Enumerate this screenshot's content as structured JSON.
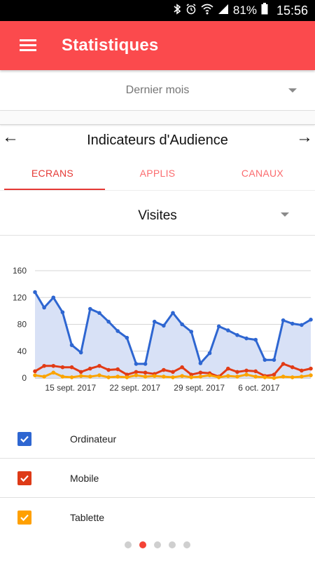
{
  "status_bar": {
    "battery": "81%",
    "time": "15:56"
  },
  "app_bar": {
    "title": "Statistiques"
  },
  "period": {
    "selected": "Dernier mois"
  },
  "section": {
    "title": "Indicateurs d'Audience"
  },
  "tabs": [
    {
      "label": "ECRANS",
      "active": true
    },
    {
      "label": "APPLIS",
      "active": false
    },
    {
      "label": "CANAUX",
      "active": false
    }
  ],
  "metric": {
    "selected": "Visites"
  },
  "chart_data": {
    "type": "line",
    "x": [
      "2017-09-12",
      "2017-09-13",
      "2017-09-14",
      "2017-09-15",
      "2017-09-16",
      "2017-09-17",
      "2017-09-18",
      "2017-09-19",
      "2017-09-20",
      "2017-09-21",
      "2017-09-22",
      "2017-09-23",
      "2017-09-24",
      "2017-09-25",
      "2017-09-26",
      "2017-09-27",
      "2017-09-28",
      "2017-09-29",
      "2017-09-30",
      "2017-10-01",
      "2017-10-02",
      "2017-10-03",
      "2017-10-04",
      "2017-10-05",
      "2017-10-06",
      "2017-10-07",
      "2017-10-08",
      "2017-10-09",
      "2017-10-10",
      "2017-10-11",
      "2017-10-12"
    ],
    "xticks": [
      "15 sept. 2017",
      "22 sept. 2017",
      "29 sept. 2017",
      "6 oct. 2017"
    ],
    "yticks": [
      0,
      40,
      80,
      120,
      160
    ],
    "ylim": [
      0,
      160
    ],
    "grid": true,
    "series": [
      {
        "name": "Ordinateur",
        "color": "#2e66d1",
        "fill": "#d8e1f6",
        "values": [
          128,
          105,
          120,
          98,
          49,
          38,
          103,
          97,
          84,
          70,
          60,
          21,
          21,
          84,
          78,
          97,
          80,
          69,
          22,
          37,
          77,
          71,
          64,
          59,
          57,
          27,
          27,
          86,
          81,
          79,
          87
        ]
      },
      {
        "name": "Mobile",
        "color": "#e23b15",
        "values": [
          10,
          18,
          18,
          16,
          16,
          9,
          14,
          18,
          12,
          13,
          5,
          9,
          8,
          6,
          12,
          9,
          16,
          5,
          8,
          7,
          2,
          14,
          9,
          11,
          10,
          3,
          5,
          21,
          16,
          11,
          14
        ]
      },
      {
        "name": "Tablette",
        "color": "#fba400",
        "values": [
          4,
          2,
          8,
          2,
          1,
          3,
          2,
          4,
          1,
          2,
          1,
          4,
          2,
          3,
          2,
          1,
          3,
          1,
          2,
          4,
          1,
          3,
          2,
          5,
          2,
          1,
          0,
          2,
          1,
          2,
          4
        ]
      }
    ]
  },
  "legend": [
    {
      "label": "Ordinateur",
      "color": "#2e66d1",
      "checked": true
    },
    {
      "label": "Mobile",
      "color": "#de3a17",
      "checked": true
    },
    {
      "label": "Tablette",
      "color": "#ffa000",
      "checked": true
    }
  ],
  "pager": {
    "count": 5,
    "active_index": 1
  }
}
